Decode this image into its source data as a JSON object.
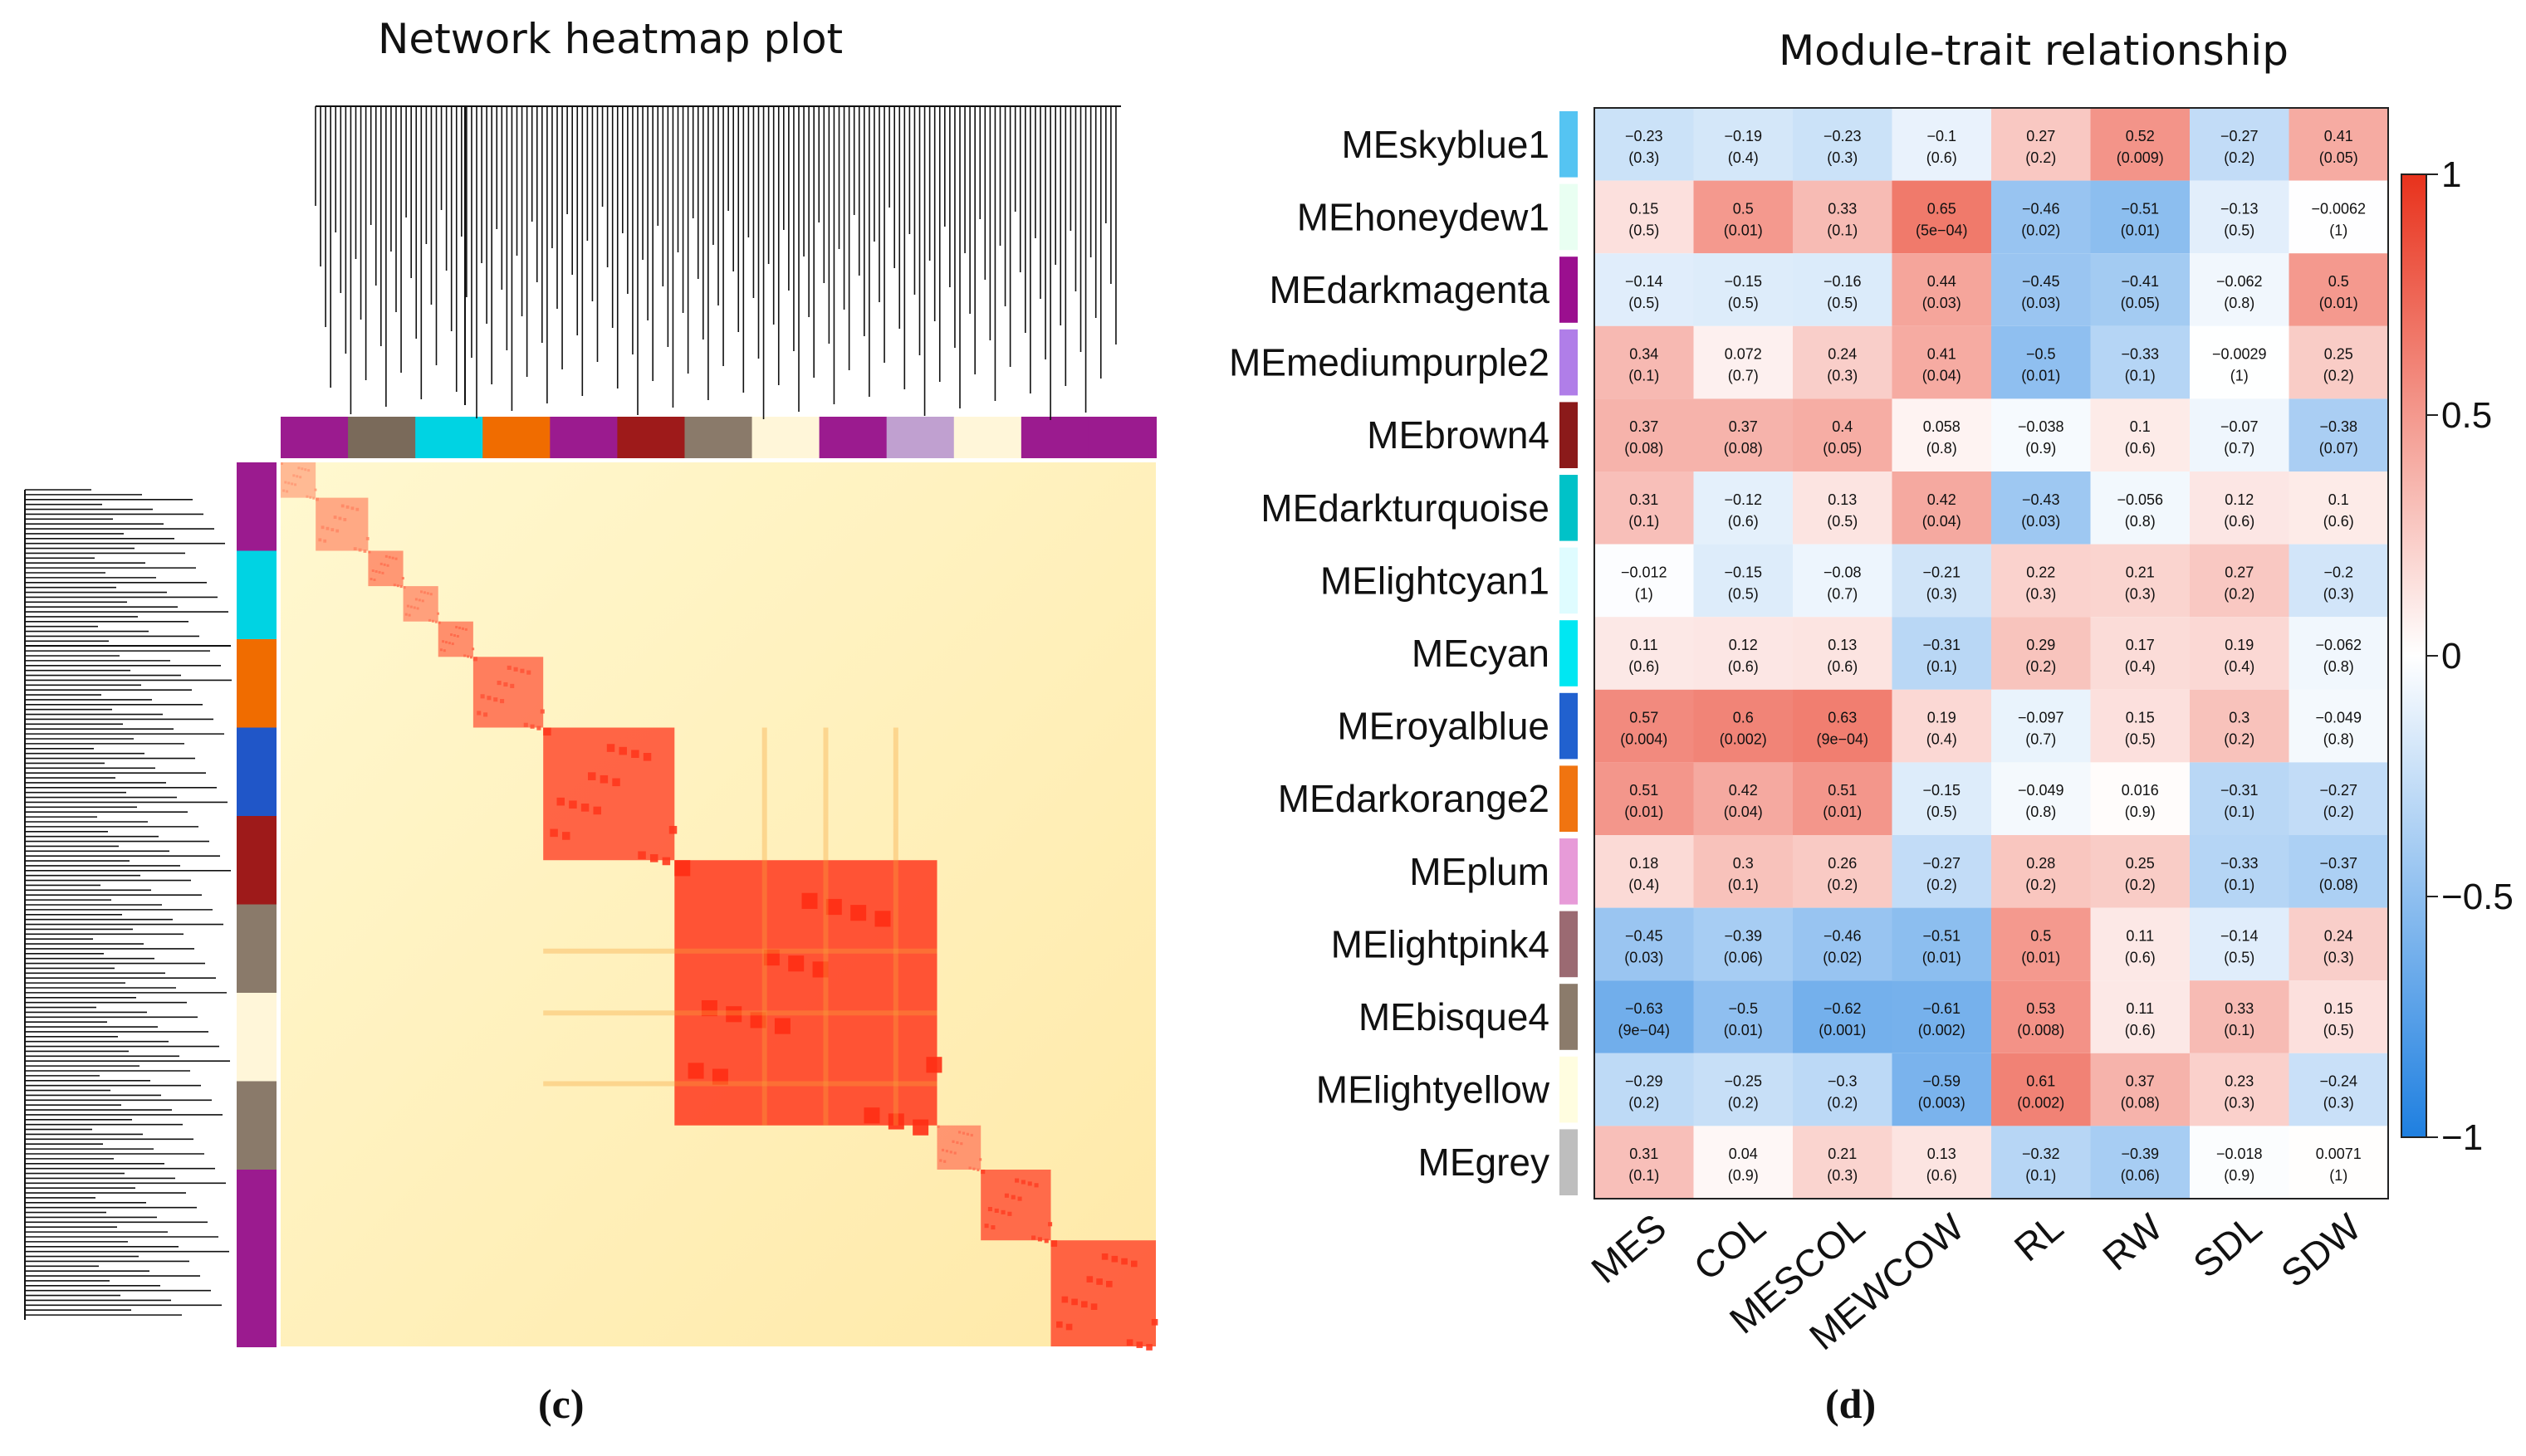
{
  "figure": {
    "panel_c_label": "(c)",
    "panel_d_label": "(d)"
  },
  "chart_data": [
    {
      "type": "heatmap",
      "title": "Network heatmap plot",
      "description_type": "TOM network heatmap with gene dendrograms and module color bars",
      "colors": {
        "low": "#fffbd5",
        "mid": "#ffd27a",
        "high": "#e8271c",
        "dendrogram": "#111111"
      },
      "module_colors_top": [
        "#9b1b8f",
        "#7a6a5a",
        "#00d3e3",
        "#f06c00",
        "#9b1b8f",
        "#9e1a1a",
        "#8a7a6a",
        "#fff6d9",
        "#9b1b8f",
        "#c0a0d0",
        "#fff6d9",
        "#9b1b8f",
        "#9b1b8f"
      ],
      "module_colors_side": [
        "#9b1b8f",
        "#00d3e3",
        "#f06c00",
        "#2056c8",
        "#9e1a1a",
        "#8a7a6a",
        "#fff6d9",
        "#8a7a6a",
        "#9b1b8f",
        "#9b1b8f"
      ]
    },
    {
      "type": "heatmap",
      "title": "Module-trait relationship",
      "rows": [
        "MEskyblue1",
        "MEhoneydew1",
        "MEdarkmagenta",
        "MEmediumpurple2",
        "MEbrown4",
        "MEdarkturquoise",
        "MElightcyan1",
        "MEcyan",
        "MEroyalblue",
        "MEdarkorange2",
        "MEplum",
        "MElightpink4",
        "MEbisque4",
        "MElightyellow",
        "MEgrey"
      ],
      "row_colors": [
        "#55c4f2",
        "#e9fff2",
        "#9b0f8f",
        "#b07ee8",
        "#8b1a1a",
        "#00c2c8",
        "#dffcff",
        "#00e7f2",
        "#2161cf",
        "#f07410",
        "#e79bd8",
        "#9b6a72",
        "#8b7b6b",
        "#fffde0",
        "#bebebe"
      ],
      "columns": [
        "MES",
        "COL",
        "MESCOL",
        "MEWCOW",
        "RL",
        "RW",
        "SDL",
        "SDW"
      ],
      "values": [
        [
          -0.23,
          -0.19,
          -0.23,
          -0.1,
          0.27,
          0.52,
          -0.27,
          0.41
        ],
        [
          0.15,
          0.5,
          0.33,
          0.65,
          -0.46,
          -0.51,
          -0.13,
          -0.0062
        ],
        [
          -0.14,
          -0.15,
          -0.16,
          0.44,
          -0.45,
          -0.41,
          -0.062,
          0.5
        ],
        [
          0.34,
          0.072,
          0.24,
          0.41,
          -0.5,
          -0.33,
          -0.0029,
          0.25
        ],
        [
          0.37,
          0.37,
          0.4,
          0.058,
          -0.038,
          0.1,
          -0.07,
          -0.38
        ],
        [
          0.31,
          -0.12,
          0.13,
          0.42,
          -0.43,
          -0.056,
          0.12,
          0.1
        ],
        [
          -0.012,
          -0.15,
          -0.08,
          -0.21,
          0.22,
          0.21,
          0.27,
          -0.2
        ],
        [
          0.11,
          0.12,
          0.13,
          -0.31,
          0.29,
          0.17,
          0.19,
          -0.062
        ],
        [
          0.57,
          0.6,
          0.63,
          0.19,
          -0.097,
          0.15,
          0.3,
          -0.049
        ],
        [
          0.51,
          0.42,
          0.51,
          -0.15,
          -0.049,
          0.016,
          -0.31,
          -0.27
        ],
        [
          0.18,
          0.3,
          0.26,
          -0.27,
          0.28,
          0.25,
          -0.33,
          -0.37
        ],
        [
          -0.45,
          -0.39,
          -0.46,
          -0.51,
          0.5,
          0.11,
          -0.14,
          0.24
        ],
        [
          -0.63,
          -0.5,
          -0.62,
          -0.61,
          0.53,
          0.11,
          0.33,
          0.15
        ],
        [
          -0.29,
          -0.25,
          -0.3,
          -0.59,
          0.61,
          0.37,
          0.23,
          -0.24
        ],
        [
          0.31,
          0.04,
          0.21,
          0.13,
          -0.32,
          -0.39,
          -0.018,
          0.0071
        ]
      ],
      "value_labels": [
        [
          "−0.23",
          "−0.19",
          "−0.23",
          "−0.1",
          "0.27",
          "0.52",
          "−0.27",
          "0.41"
        ],
        [
          "0.15",
          "0.5",
          "0.33",
          "0.65",
          "−0.46",
          "−0.51",
          "−0.13",
          "−0.0062"
        ],
        [
          "−0.14",
          "−0.15",
          "−0.16",
          "0.44",
          "−0.45",
          "−0.41",
          "−0.062",
          "0.5"
        ],
        [
          "0.34",
          "0.072",
          "0.24",
          "0.41",
          "−0.5",
          "−0.33",
          "−0.0029",
          "0.25"
        ],
        [
          "0.37",
          "0.37",
          "0.4",
          "0.058",
          "−0.038",
          "0.1",
          "−0.07",
          "−0.38"
        ],
        [
          "0.31",
          "−0.12",
          "0.13",
          "0.42",
          "−0.43",
          "−0.056",
          "0.12",
          "0.1"
        ],
        [
          "−0.012",
          "−0.15",
          "−0.08",
          "−0.21",
          "0.22",
          "0.21",
          "0.27",
          "−0.2"
        ],
        [
          "0.11",
          "0.12",
          "0.13",
          "−0.31",
          "0.29",
          "0.17",
          "0.19",
          "−0.062"
        ],
        [
          "0.57",
          "0.6",
          "0.63",
          "0.19",
          "−0.097",
          "0.15",
          "0.3",
          "−0.049"
        ],
        [
          "0.51",
          "0.42",
          "0.51",
          "−0.15",
          "−0.049",
          "0.016",
          "−0.31",
          "−0.27"
        ],
        [
          "0.18",
          "0.3",
          "0.26",
          "−0.27",
          "0.28",
          "0.25",
          "−0.33",
          "−0.37"
        ],
        [
          "−0.45",
          "−0.39",
          "−0.46",
          "−0.51",
          "0.5",
          "0.11",
          "−0.14",
          "0.24"
        ],
        [
          "−0.63",
          "−0.5",
          "−0.62",
          "−0.61",
          "0.53",
          "0.11",
          "0.33",
          "0.15"
        ],
        [
          "−0.29",
          "−0.25",
          "−0.3",
          "−0.59",
          "0.61",
          "0.37",
          "0.23",
          "−0.24"
        ],
        [
          "0.31",
          "0.04",
          "0.21",
          "0.13",
          "−0.32",
          "−0.39",
          "−0.018",
          "0.0071"
        ]
      ],
      "pvalues": [
        [
          "(0.3)",
          "(0.4)",
          "(0.3)",
          "(0.6)",
          "(0.2)",
          "(0.009)",
          "(0.2)",
          "(0.05)"
        ],
        [
          "(0.5)",
          "(0.01)",
          "(0.1)",
          "(5e−04)",
          "(0.02)",
          "(0.01)",
          "(0.5)",
          "(1)"
        ],
        [
          "(0.5)",
          "(0.5)",
          "(0.5)",
          "(0.03)",
          "(0.03)",
          "(0.05)",
          "(0.8)",
          "(0.01)"
        ],
        [
          "(0.1)",
          "(0.7)",
          "(0.3)",
          "(0.04)",
          "(0.01)",
          "(0.1)",
          "(1)",
          "(0.2)"
        ],
        [
          "(0.08)",
          "(0.08)",
          "(0.05)",
          "(0.8)",
          "(0.9)",
          "(0.6)",
          "(0.7)",
          "(0.07)"
        ],
        [
          "(0.1)",
          "(0.6)",
          "(0.5)",
          "(0.04)",
          "(0.03)",
          "(0.8)",
          "(0.6)",
          "(0.6)"
        ],
        [
          "(1)",
          "(0.5)",
          "(0.7)",
          "(0.3)",
          "(0.3)",
          "(0.3)",
          "(0.2)",
          "(0.3)"
        ],
        [
          "(0.6)",
          "(0.6)",
          "(0.6)",
          "(0.1)",
          "(0.2)",
          "(0.4)",
          "(0.4)",
          "(0.8)"
        ],
        [
          "(0.004)",
          "(0.002)",
          "(9e−04)",
          "(0.4)",
          "(0.7)",
          "(0.5)",
          "(0.2)",
          "(0.8)"
        ],
        [
          "(0.01)",
          "(0.04)",
          "(0.01)",
          "(0.5)",
          "(0.8)",
          "(0.9)",
          "(0.1)",
          "(0.2)"
        ],
        [
          "(0.4)",
          "(0.1)",
          "(0.2)",
          "(0.2)",
          "(0.2)",
          "(0.2)",
          "(0.1)",
          "(0.08)"
        ],
        [
          "(0.03)",
          "(0.06)",
          "(0.02)",
          "(0.01)",
          "(0.01)",
          "(0.6)",
          "(0.5)",
          "(0.3)"
        ],
        [
          "(9e−04)",
          "(0.01)",
          "(0.001)",
          "(0.002)",
          "(0.008)",
          "(0.6)",
          "(0.1)",
          "(0.5)"
        ],
        [
          "(0.2)",
          "(0.2)",
          "(0.2)",
          "(0.003)",
          "(0.002)",
          "(0.08)",
          "(0.3)",
          "(0.3)"
        ],
        [
          "(0.1)",
          "(0.9)",
          "(0.3)",
          "(0.6)",
          "(0.1)",
          "(0.06)",
          "(0.9)",
          "(1)"
        ]
      ],
      "colorbar": {
        "range": [
          -1,
          1
        ],
        "ticks": [
          1,
          0.5,
          0,
          -0.5,
          -1
        ],
        "tick_labels": [
          "1",
          "0.5",
          "0",
          "−0.5",
          "−1"
        ],
        "low_color": "#1e7fe0",
        "mid_color": "#ffffff",
        "high_color": "#e8321c"
      }
    }
  ]
}
